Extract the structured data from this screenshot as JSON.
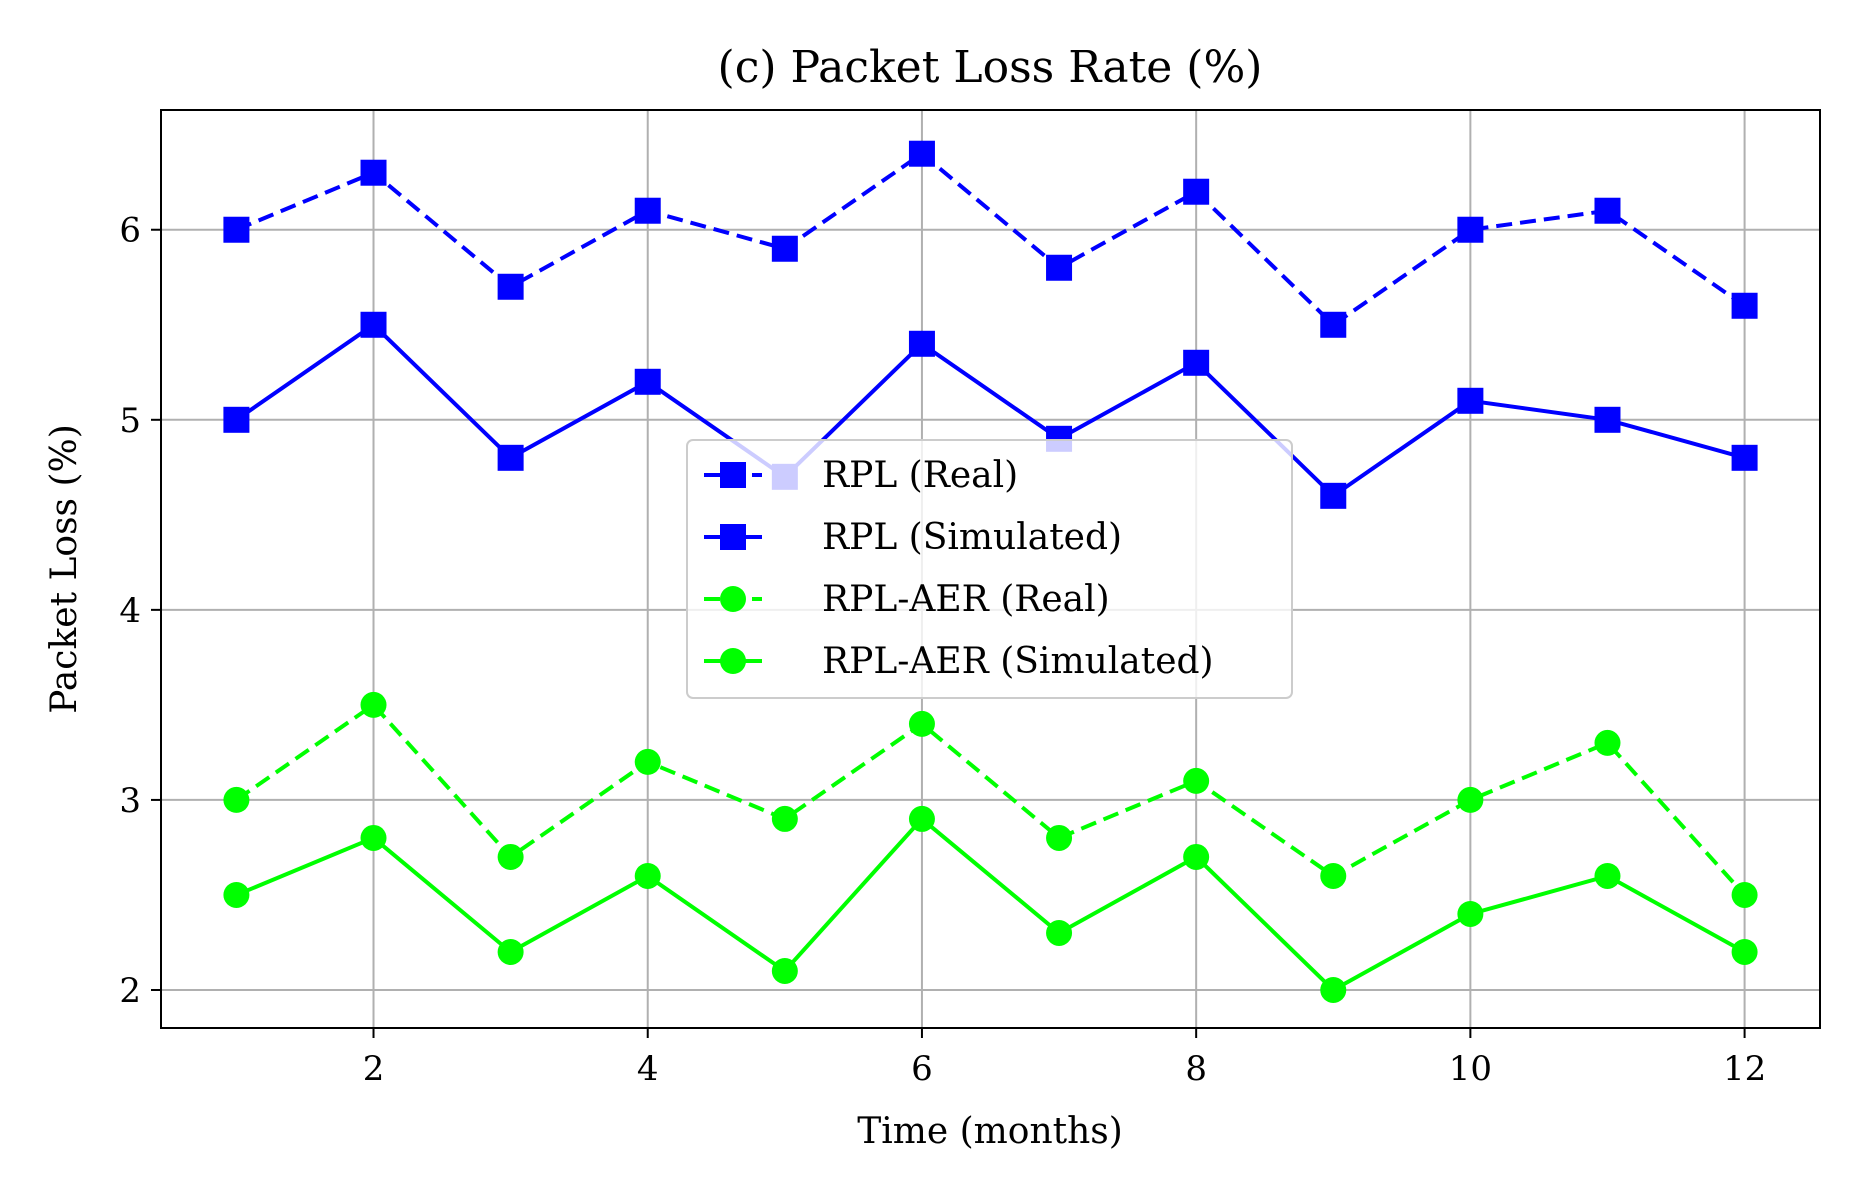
{
  "chart_data": {
    "type": "line",
    "title": "(c) Packet Loss Rate (%)",
    "xlabel": "Time (months)",
    "ylabel": "Packet Loss (%)",
    "x": [
      1,
      2,
      3,
      4,
      5,
      6,
      7,
      8,
      9,
      10,
      11,
      12
    ],
    "xlim": [
      0.45,
      12.55
    ],
    "ylim": [
      1.8,
      6.63
    ],
    "xticks": [
      2,
      4,
      6,
      8,
      10,
      12
    ],
    "yticks": [
      2,
      3,
      4,
      5,
      6
    ],
    "grid": true,
    "legend_position": "center",
    "series": [
      {
        "name": "RPL (Real)",
        "color": "#0000ff",
        "linestyle": "dashed",
        "marker": "square",
        "values": [
          6.0,
          6.3,
          5.7,
          6.1,
          5.9,
          6.4,
          5.8,
          6.2,
          5.5,
          6.0,
          6.1,
          5.6
        ]
      },
      {
        "name": "RPL (Simulated)",
        "color": "#0000ff",
        "linestyle": "solid",
        "marker": "square",
        "values": [
          5.0,
          5.5,
          4.8,
          5.2,
          4.7,
          5.4,
          4.9,
          5.3,
          4.6,
          5.1,
          5.0,
          4.8
        ]
      },
      {
        "name": "RPL-AER (Real)",
        "color": "#00ff00",
        "linestyle": "dashed",
        "marker": "circle",
        "values": [
          3.0,
          3.5,
          2.7,
          3.2,
          2.9,
          3.4,
          2.8,
          3.1,
          2.6,
          3.0,
          3.3,
          2.5
        ]
      },
      {
        "name": "RPL-AER (Simulated)",
        "color": "#00ff00",
        "linestyle": "solid",
        "marker": "circle",
        "values": [
          2.5,
          2.8,
          2.2,
          2.6,
          2.1,
          2.9,
          2.3,
          2.7,
          2.0,
          2.4,
          2.6,
          2.2
        ]
      }
    ]
  }
}
